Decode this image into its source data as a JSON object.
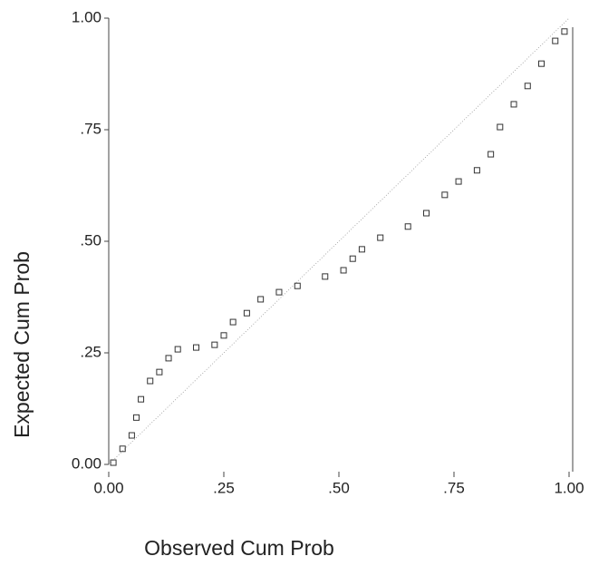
{
  "chart_data": {
    "type": "scatter",
    "xlabel": "Observed Cum Prob",
    "ylabel": "Expected Cum Prob",
    "xlim": [
      0,
      1
    ],
    "ylim": [
      0,
      1
    ],
    "xticks": [
      {
        "value": 0,
        "label": "0.00"
      },
      {
        "value": 0.25,
        "label": ".25"
      },
      {
        "value": 0.5,
        "label": ".50"
      },
      {
        "value": 0.75,
        "label": ".75"
      },
      {
        "value": 1,
        "label": "1.00"
      }
    ],
    "yticks": [
      {
        "value": 0,
        "label": "0.00"
      },
      {
        "value": 0.25,
        "label": ".25"
      },
      {
        "value": 0.5,
        "label": ".50"
      },
      {
        "value": 0.75,
        "label": ".75"
      },
      {
        "value": 1,
        "label": "1.00"
      }
    ],
    "color": "#333333",
    "x": [
      0.01,
      0.03,
      0.05,
      0.06,
      0.07,
      0.09,
      0.11,
      0.13,
      0.15,
      0.19,
      0.23,
      0.25,
      0.27,
      0.3,
      0.33,
      0.37,
      0.41,
      0.47,
      0.51,
      0.53,
      0.55,
      0.59,
      0.65,
      0.69,
      0.73,
      0.76,
      0.8,
      0.83,
      0.85,
      0.88,
      0.91,
      0.94,
      0.97,
      0.99
    ],
    "values": [
      0.004,
      0.035,
      0.065,
      0.105,
      0.146,
      0.187,
      0.207,
      0.238,
      0.258,
      0.262,
      0.268,
      0.289,
      0.319,
      0.339,
      0.37,
      0.386,
      0.4,
      0.421,
      0.435,
      0.461,
      0.482,
      0.508,
      0.533,
      0.563,
      0.604,
      0.634,
      0.659,
      0.695,
      0.756,
      0.807,
      0.848,
      0.898,
      0.949,
      0.97
    ]
  }
}
